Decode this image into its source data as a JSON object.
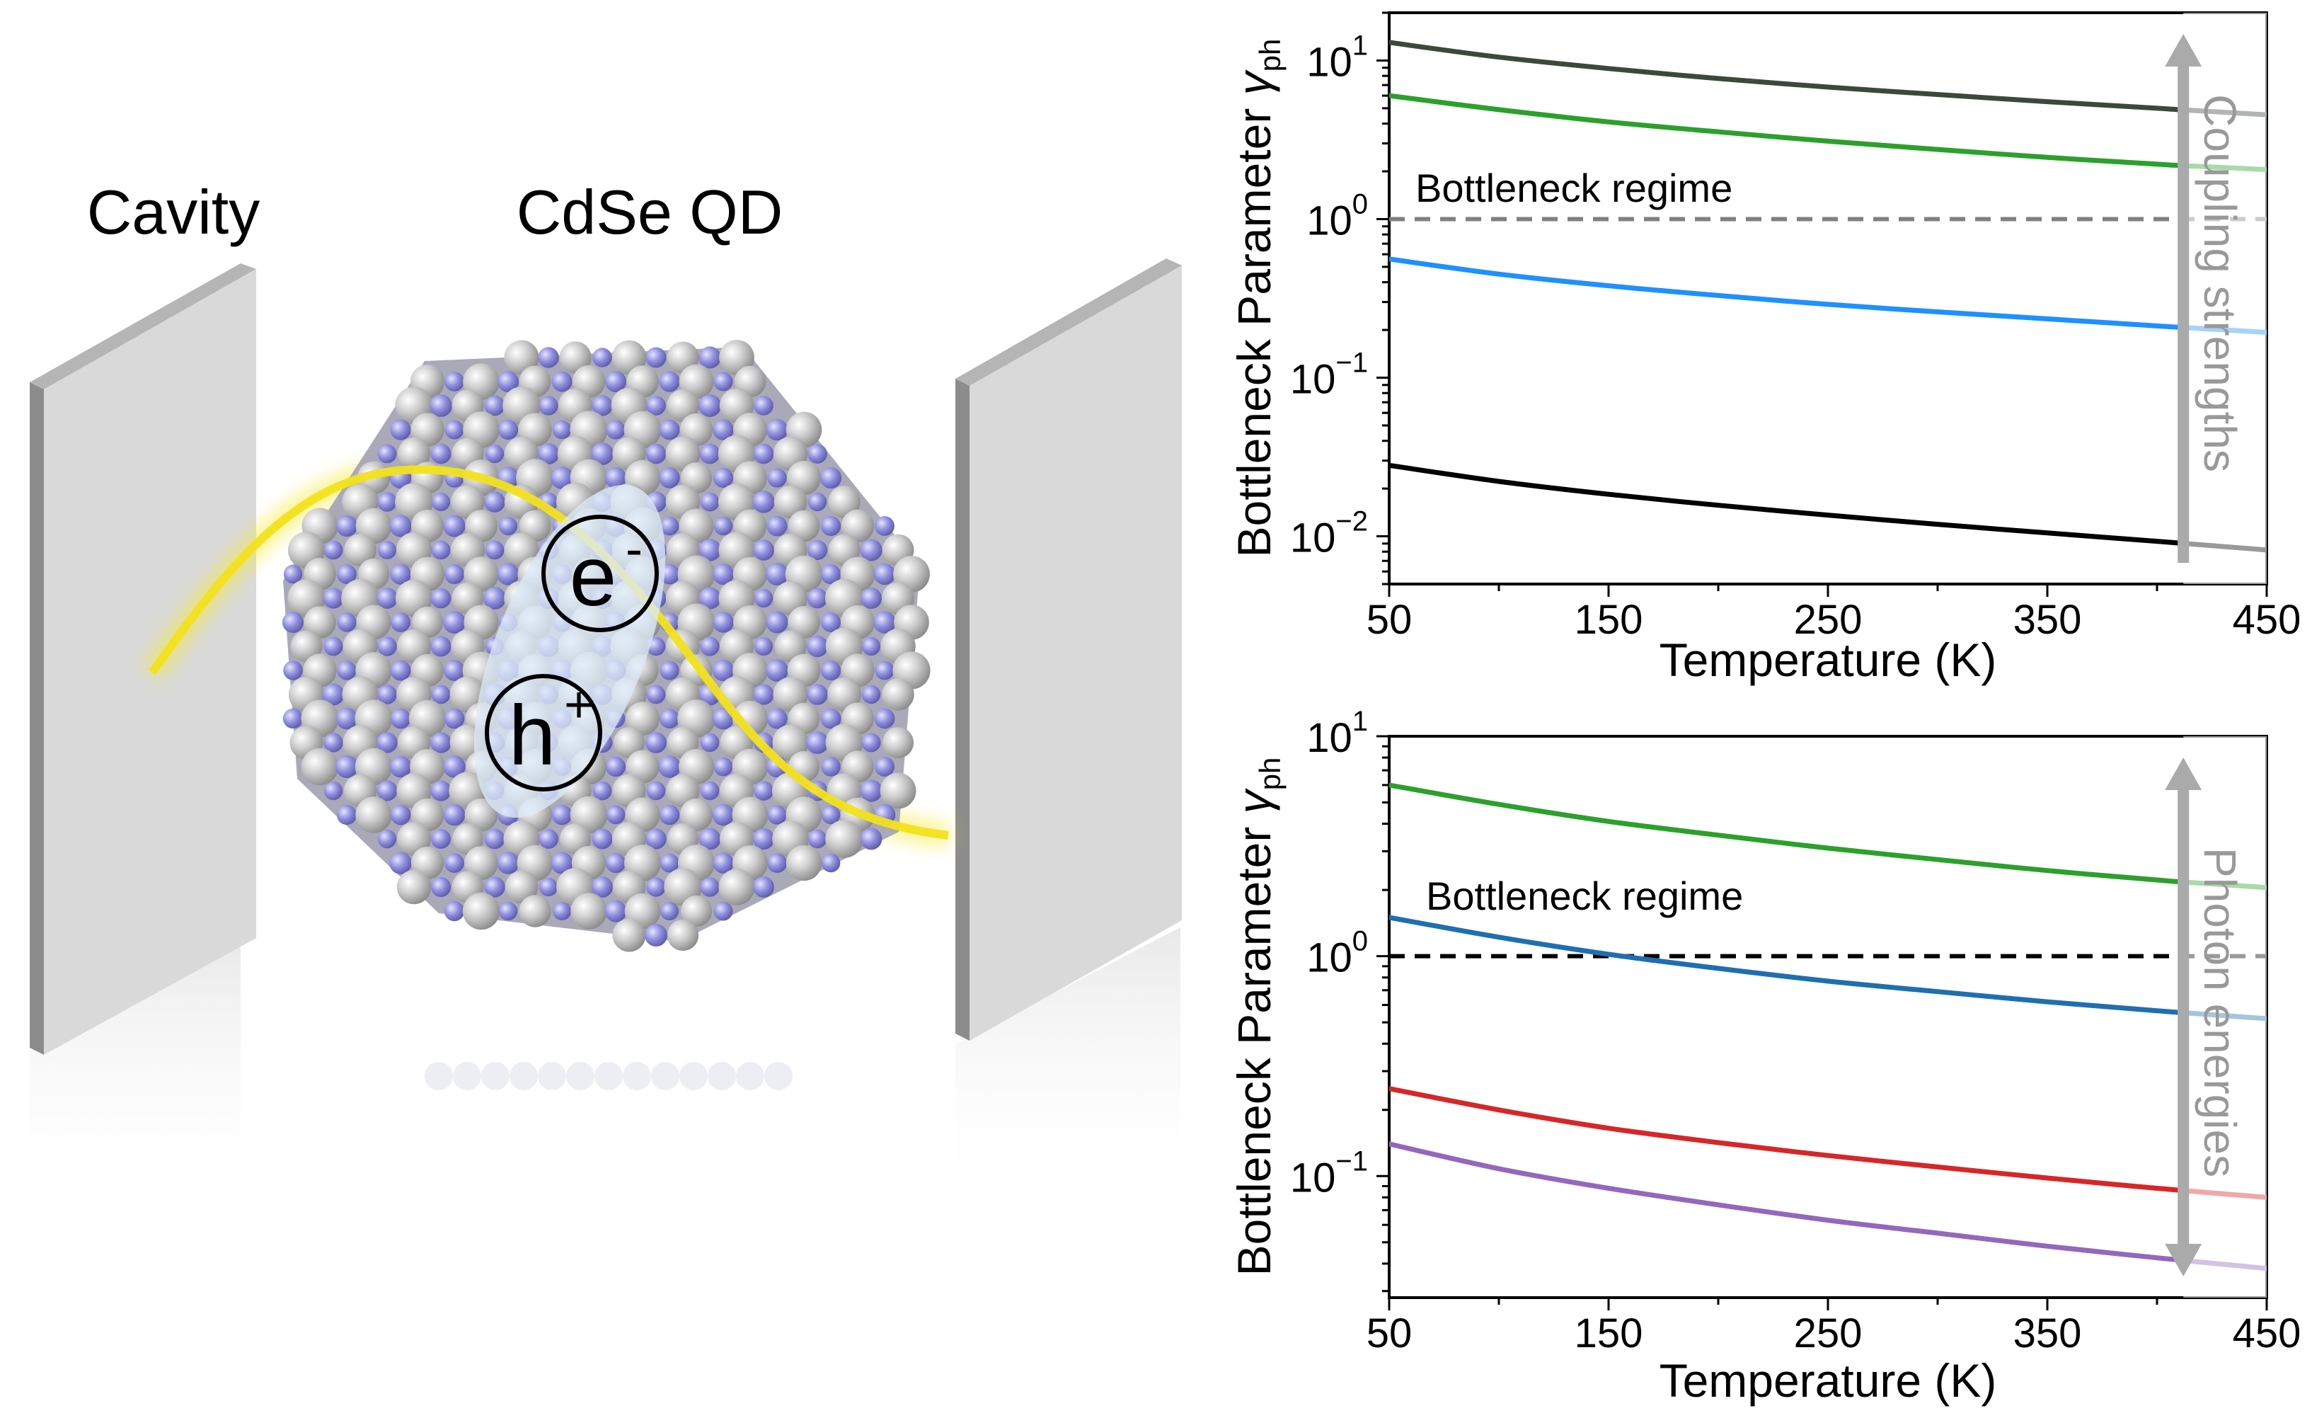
{
  "illustration": {
    "cavity_label": "Cavity",
    "qd_label": "CdSe QD",
    "electron_label": "e",
    "electron_sup": "-",
    "hole_label": "h",
    "hole_sup": "+"
  },
  "colors": {
    "mirror": "#d9d9d9",
    "wave": "#f2e21c",
    "atom_grey": "#c9c9c9",
    "atom_blue": "#8f8fe0",
    "arrow": "#aaaaaa"
  },
  "chart_data": [
    {
      "type": "line",
      "title": "",
      "xlabel": "Temperature (K)",
      "ylabel_main": "Bottleneck Parameter ",
      "ylabel_symbol": "γ",
      "ylabel_sub": "ph",
      "yscale": "log",
      "xlim": [
        50,
        450
      ],
      "ylim": [
        0.005,
        20
      ],
      "xticks": [
        50,
        150,
        250,
        350,
        450
      ],
      "yticks": [
        {
          "value": 10,
          "base": "10",
          "exp": "1"
        },
        {
          "value": 1,
          "base": "10",
          "exp": "0"
        },
        {
          "value": 0.1,
          "base": "10",
          "exp": "−1"
        },
        {
          "value": 0.01,
          "base": "10",
          "exp": "−2"
        }
      ],
      "reference_line": {
        "y": 1,
        "color": "#808080",
        "style": "dashed"
      },
      "annotation": "Bottleneck regime",
      "side_label": "Coupling strengths",
      "arrow_direction": "up",
      "series": [
        {
          "name": "series-1",
          "color": "#3a4a3a",
          "x": [
            50,
            100,
            150,
            200,
            250,
            300,
            350,
            400,
            410,
            450
          ],
          "values": [
            13.0,
            10.5,
            8.9,
            7.7,
            6.8,
            6.1,
            5.5,
            5.0,
            4.9,
            4.55
          ]
        },
        {
          "name": "series-2",
          "color": "#2ca02c",
          "x": [
            50,
            100,
            150,
            200,
            250,
            300,
            350,
            400,
            410,
            450
          ],
          "values": [
            6.0,
            4.9,
            4.1,
            3.55,
            3.1,
            2.75,
            2.45,
            2.22,
            2.18,
            2.05
          ]
        },
        {
          "name": "series-3",
          "color": "#1e90ff",
          "x": [
            50,
            100,
            150,
            200,
            250,
            300,
            350,
            400,
            410,
            450
          ],
          "values": [
            0.56,
            0.45,
            0.38,
            0.33,
            0.29,
            0.26,
            0.235,
            0.212,
            0.208,
            0.193
          ]
        },
        {
          "name": "series-4",
          "color": "#000000",
          "x": [
            50,
            100,
            150,
            200,
            250,
            300,
            350,
            400,
            450
          ],
          "values": [
            0.028,
            0.0222,
            0.0184,
            0.0157,
            0.0136,
            0.0119,
            0.0105,
            0.0093,
            0.0082
          ]
        }
      ]
    },
    {
      "type": "line",
      "title": "",
      "xlabel": "Temperature (K)",
      "ylabel_main": "Bottleneck Parameter ",
      "ylabel_symbol": "γ",
      "ylabel_sub": "ph",
      "yscale": "log",
      "xlim": [
        50,
        450
      ],
      "ylim": [
        0.028,
        10
      ],
      "xticks": [
        50,
        150,
        250,
        350,
        450
      ],
      "yticks": [
        {
          "value": 10,
          "base": "10",
          "exp": "1"
        },
        {
          "value": 1,
          "base": "10",
          "exp": "0"
        },
        {
          "value": 0.1,
          "base": "10",
          "exp": "−1"
        }
      ],
      "reference_line": {
        "y": 1,
        "color": "#000000",
        "style": "dashed"
      },
      "annotation": "Bottleneck regime",
      "side_label": "Photon energies",
      "arrow_direction": "both",
      "series": [
        {
          "name": "series-1",
          "color": "#2ca02c",
          "x": [
            50,
            100,
            150,
            200,
            250,
            300,
            350,
            400,
            410,
            450
          ],
          "values": [
            6.0,
            4.9,
            4.1,
            3.55,
            3.1,
            2.75,
            2.45,
            2.22,
            2.18,
            2.05
          ]
        },
        {
          "name": "series-2",
          "color": "#1f6fb0",
          "x": [
            50,
            100,
            150,
            200,
            250,
            300,
            350,
            400,
            410,
            450
          ],
          "values": [
            1.5,
            1.22,
            1.02,
            0.88,
            0.77,
            0.69,
            0.62,
            0.565,
            0.555,
            0.52
          ]
        },
        {
          "name": "series-3",
          "color": "#d62728",
          "x": [
            50,
            100,
            150,
            200,
            250,
            300,
            350,
            400,
            450
          ],
          "values": [
            0.25,
            0.2,
            0.165,
            0.142,
            0.124,
            0.11,
            0.098,
            0.088,
            0.08
          ]
        },
        {
          "name": "series-4",
          "color": "#9467bd",
          "x": [
            50,
            100,
            150,
            200,
            250,
            300,
            350,
            400,
            450
          ],
          "values": [
            0.14,
            0.108,
            0.088,
            0.074,
            0.063,
            0.055,
            0.048,
            0.0425,
            0.038
          ]
        }
      ]
    }
  ]
}
